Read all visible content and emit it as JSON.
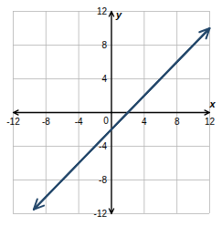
{
  "chart_data": {
    "type": "line",
    "x": [
      -9.5,
      12
    ],
    "values": [
      -11.5,
      10
    ],
    "color": "#24486b",
    "x_label": "x",
    "y_label": "y",
    "xlim": [
      -12,
      12
    ],
    "ylim": [
      -12,
      12
    ],
    "xticks": [
      -12,
      -8,
      -4,
      0,
      4,
      8,
      12
    ],
    "yticks": [
      -12,
      -8,
      -4,
      4,
      8,
      12
    ],
    "grid": true
  }
}
